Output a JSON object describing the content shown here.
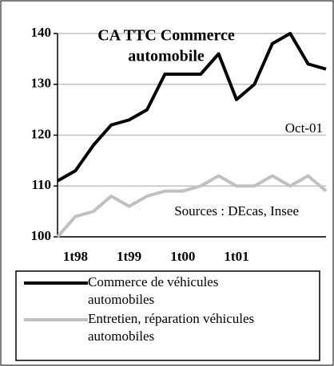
{
  "chart_data": {
    "type": "line",
    "title": [
      "CA TTC Commerce",
      "automobile"
    ],
    "annotations": [
      "Oct-01",
      "Sources : DEcas, Insee"
    ],
    "categories": [
      null,
      "1t98",
      null,
      null,
      "1t99",
      null,
      null,
      "1t00",
      null,
      null,
      "1t01",
      null,
      null,
      null,
      null,
      null
    ],
    "series": [
      {
        "name": [
          "Commerce de véhicules",
          "automobiles"
        ],
        "color": "#000000",
        "values": [
          111,
          113,
          118,
          122,
          123,
          125,
          132,
          132,
          132,
          136,
          127,
          130,
          138,
          140,
          134,
          133
        ]
      },
      {
        "name": [
          "Entretien, réparation véhicules",
          "automobiles"
        ],
        "color": "#c0c0c0",
        "values": [
          100,
          104,
          105,
          108,
          106,
          108,
          109,
          109,
          110,
          112,
          110,
          110,
          112,
          110,
          112,
          109
        ]
      }
    ],
    "ylim": [
      100,
      140
    ],
    "yticks": [
      100,
      110,
      120,
      130,
      140
    ],
    "grid": true
  }
}
